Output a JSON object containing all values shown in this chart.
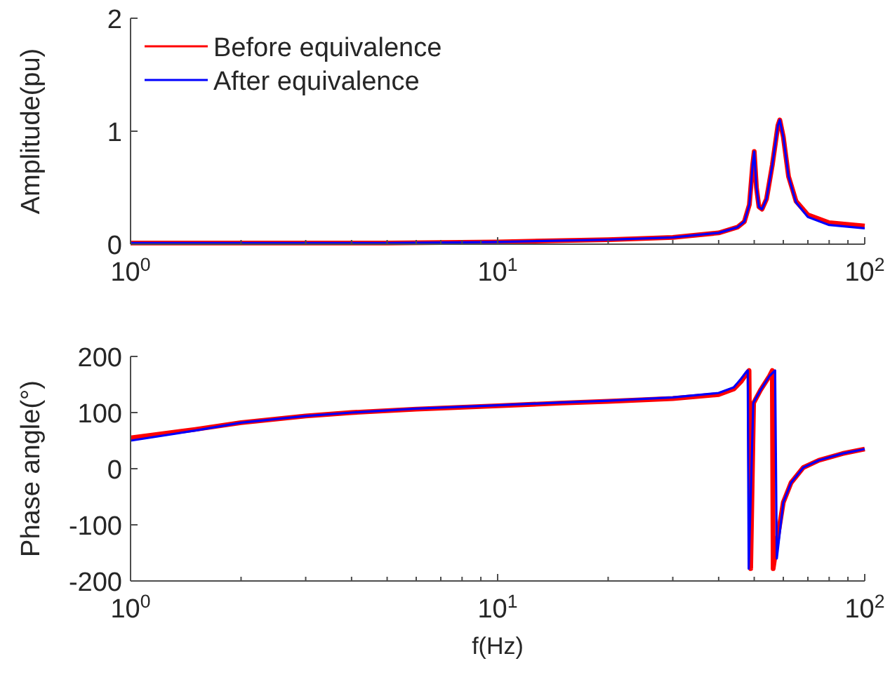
{
  "chart_data": [
    {
      "type": "line",
      "ylabel": "Amplitude(pu)",
      "log": "x",
      "xlim": [
        1,
        100
      ],
      "xticks": [
        {
          "value": 1,
          "label": "10$^{0}$"
        },
        {
          "value": 10,
          "label": "10$^{1}$"
        },
        {
          "value": 100,
          "label": "10$^{2}$"
        }
      ],
      "ylim": [
        0,
        2
      ],
      "yticks": [
        0,
        1,
        2
      ],
      "legend": "top left",
      "grid": false,
      "series": [
        {
          "name": "Before equivalence",
          "color": "#ff0000",
          "x": [
            1,
            2,
            5,
            10,
            20,
            30,
            40,
            45,
            47,
            48.5,
            49.5,
            50,
            50.7,
            51.5,
            52.5,
            54,
            56,
            58,
            58.7,
            60,
            62,
            65,
            70,
            80,
            100
          ],
          "values": [
            0.01,
            0.01,
            0.01,
            0.02,
            0.04,
            0.06,
            0.1,
            0.15,
            0.2,
            0.35,
            0.7,
            0.82,
            0.5,
            0.33,
            0.31,
            0.4,
            0.7,
            1.05,
            1.1,
            0.95,
            0.6,
            0.38,
            0.26,
            0.19,
            0.16
          ]
        },
        {
          "name": "After equivalence",
          "color": "#0000ff",
          "x": [
            1,
            2,
            5,
            10,
            20,
            30,
            40,
            45,
            47,
            48.5,
            49.5,
            50,
            50.7,
            51.5,
            52.5,
            54,
            56,
            58,
            58.7,
            60,
            62,
            65,
            70,
            80,
            100
          ],
          "values": [
            0.01,
            0.01,
            0.01,
            0.02,
            0.04,
            0.06,
            0.1,
            0.15,
            0.2,
            0.35,
            0.7,
            0.82,
            0.5,
            0.33,
            0.31,
            0.4,
            0.7,
            1.05,
            1.1,
            0.95,
            0.6,
            0.37,
            0.24,
            0.17,
            0.14
          ]
        }
      ]
    },
    {
      "type": "line",
      "xlabel": "f(Hz)",
      "ylabel": "Phase angle(°)",
      "log": "x",
      "xlim": [
        1,
        100
      ],
      "xticks": [
        {
          "value": 1,
          "label": "10$^{0}$"
        },
        {
          "value": 10,
          "label": "10$^{1}$"
        },
        {
          "value": 100,
          "label": "10$^{2}$"
        }
      ],
      "ylim": [
        -200,
        200
      ],
      "yticks": [
        -200,
        -100,
        0,
        100,
        200
      ],
      "grid": false,
      "series": [
        {
          "color": "#ff0000",
          "x": [
            1,
            1.5,
            2,
            3,
            4,
            6,
            10,
            15,
            20,
            30,
            40,
            44,
            46,
            47.5,
            48.4,
            48.9,
            49.8,
            52,
            55,
            56,
            56.3,
            58,
            60,
            63,
            68,
            75,
            87,
            100
          ],
          "values": [
            55,
            70,
            82,
            94,
            100,
            106,
            112,
            117,
            120,
            125,
            132,
            142,
            155,
            168,
            175,
            -178,
            117,
            140,
            165,
            175,
            -178,
            -120,
            -60,
            -25,
            2,
            15,
            27,
            35
          ]
        },
        {
          "color": "#0000ff",
          "x": [
            1,
            1.5,
            2,
            3,
            4,
            6,
            10,
            15,
            20,
            30,
            40,
            44,
            46,
            47.5,
            48,
            48.3,
            49.7,
            52,
            55,
            57,
            57.6,
            60,
            63,
            68,
            75,
            87,
            100
          ],
          "values": [
            50,
            68,
            82,
            94,
            100,
            107,
            113,
            118,
            121,
            127,
            135,
            145,
            160,
            172,
            175,
            -178,
            117,
            140,
            165,
            175,
            -160,
            -60,
            -25,
            2,
            15,
            27,
            35
          ]
        }
      ]
    }
  ]
}
